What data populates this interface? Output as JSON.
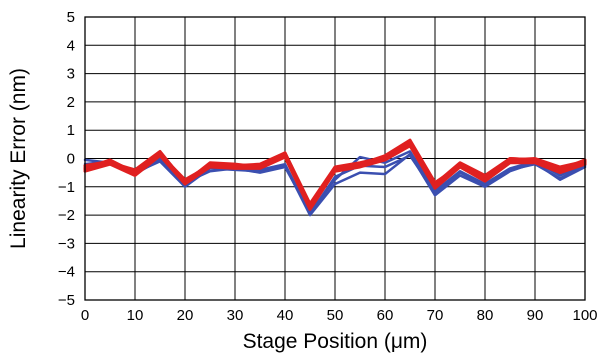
{
  "chart_data": {
    "type": "line",
    "title": "",
    "xlabel": "Stage Position (μm)",
    "ylabel": "Linearity Error (nm)",
    "xlim": [
      0,
      100
    ],
    "ylim": [
      -5,
      5
    ],
    "xticks": [
      0,
      10,
      20,
      30,
      40,
      50,
      60,
      70,
      80,
      90,
      100
    ],
    "yticks": [
      5,
      4,
      3,
      2,
      1,
      0,
      -1,
      -2,
      -3,
      -4,
      -5
    ],
    "grid": true,
    "legend": "none",
    "x": [
      0,
      5,
      10,
      15,
      20,
      25,
      30,
      35,
      40,
      45,
      50,
      55,
      60,
      65,
      70,
      75,
      80,
      85,
      90,
      95,
      100
    ],
    "series": [
      {
        "color": "#3b4fb0",
        "values": [
          -0.05,
          -0.15,
          -0.5,
          -0.1,
          -1.0,
          -0.35,
          -0.4,
          -0.45,
          -0.25,
          -2.0,
          -0.9,
          -0.5,
          -0.55,
          0.15,
          -1.3,
          -0.6,
          -1.0,
          -0.45,
          -0.15,
          -0.75,
          -0.3
        ]
      },
      {
        "color": "#3b4fb0",
        "values": [
          -0.3,
          -0.2,
          -0.55,
          -0.05,
          -0.85,
          -0.45,
          -0.35,
          -0.5,
          -0.3,
          -1.9,
          -0.75,
          0.05,
          -0.15,
          0.25,
          -1.15,
          -0.45,
          -0.9,
          -0.35,
          -0.1,
          -0.6,
          -0.2
        ]
      },
      {
        "color": "#3b4fb0",
        "values": [
          -0.2,
          -0.1,
          -0.45,
          0.0,
          -0.9,
          -0.3,
          -0.3,
          -0.4,
          -0.2,
          -1.95,
          -0.65,
          -0.25,
          -0.3,
          0.1,
          -1.2,
          -0.5,
          -0.95,
          -0.4,
          -0.2,
          -0.7,
          -0.25
        ]
      },
      {
        "color": "#e02020",
        "values": [
          -0.4,
          -0.1,
          -0.5,
          0.2,
          -0.8,
          -0.2,
          -0.25,
          -0.2,
          0.2,
          -1.6,
          -0.3,
          -0.15,
          0.05,
          0.6,
          -0.9,
          -0.15,
          -0.6,
          0.0,
          -0.05,
          -0.4,
          -0.05
        ]
      },
      {
        "color": "#e02020",
        "values": [
          -0.3,
          -0.15,
          -0.4,
          0.25,
          -0.85,
          -0.15,
          -0.2,
          -0.3,
          0.1,
          -1.7,
          -0.4,
          -0.25,
          0.0,
          0.55,
          -1.0,
          -0.2,
          -0.7,
          -0.05,
          0.0,
          -0.3,
          -0.1
        ]
      },
      {
        "color": "#e02020",
        "values": [
          -0.35,
          -0.05,
          -0.5,
          0.15,
          -0.75,
          -0.25,
          -0.3,
          -0.25,
          0.15,
          -1.75,
          -0.35,
          -0.2,
          0.1,
          0.65,
          -0.85,
          -0.25,
          -0.65,
          -0.1,
          -0.1,
          -0.35,
          -0.15
        ]
      },
      {
        "color": "#e02020",
        "values": [
          -0.45,
          -0.2,
          -0.6,
          0.1,
          -0.9,
          -0.3,
          -0.35,
          -0.35,
          0.05,
          -1.8,
          -0.45,
          -0.3,
          -0.05,
          0.45,
          -1.05,
          -0.3,
          -0.8,
          -0.15,
          -0.15,
          -0.5,
          -0.2
        ]
      },
      {
        "color": "#e02020",
        "values": [
          -0.25,
          -0.1,
          -0.45,
          0.2,
          -0.8,
          -0.2,
          -0.25,
          -0.3,
          0.2,
          -1.65,
          -0.35,
          -0.2,
          0.0,
          0.5,
          -0.95,
          -0.2,
          -0.7,
          0.0,
          -0.05,
          -0.45,
          -0.1
        ]
      },
      {
        "color": "#e02020",
        "values": [
          -0.35,
          -0.15,
          -0.55,
          0.15,
          -0.85,
          -0.25,
          -0.3,
          -0.3,
          0.1,
          -1.7,
          -0.4,
          -0.25,
          -0.05,
          0.55,
          -1.0,
          -0.25,
          -0.75,
          -0.05,
          -0.1,
          -0.4,
          -0.15
        ]
      }
    ]
  }
}
